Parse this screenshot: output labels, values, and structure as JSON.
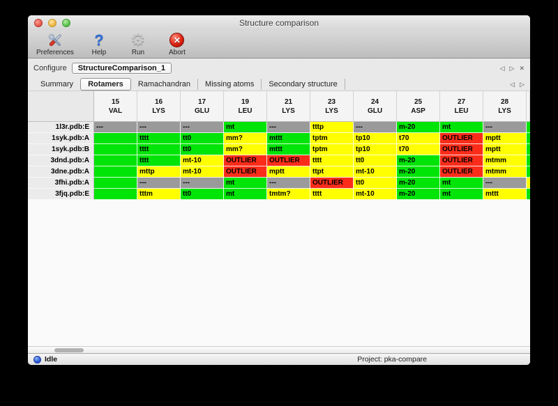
{
  "window": {
    "title": "Structure comparison"
  },
  "toolbar": {
    "preferences_label": "Preferences",
    "help_label": "Help",
    "run_label": "Run",
    "abort_label": "Abort"
  },
  "configure": {
    "label": "Configure",
    "value": "StructureComparison_1",
    "nav_prev": "◁",
    "nav_next": "▷",
    "nav_close": "✕"
  },
  "tabs": {
    "items": [
      {
        "label": "Summary",
        "active": false
      },
      {
        "label": "Rotamers",
        "active": true
      },
      {
        "label": "Ramachandran",
        "active": false
      },
      {
        "label": "Missing atoms",
        "active": false
      },
      {
        "label": "Secondary structure",
        "active": false
      }
    ],
    "nav_prev": "◁",
    "nav_next": "▷"
  },
  "table": {
    "columns": [
      {
        "num": "15",
        "res": "VAL"
      },
      {
        "num": "16",
        "res": "LYS"
      },
      {
        "num": "17",
        "res": "GLU"
      },
      {
        "num": "19",
        "res": "LEU"
      },
      {
        "num": "21",
        "res": "LYS"
      },
      {
        "num": "23",
        "res": "LYS"
      },
      {
        "num": "24",
        "res": "GLU"
      },
      {
        "num": "25",
        "res": "ASP"
      },
      {
        "num": "27",
        "res": "LEU"
      },
      {
        "num": "28",
        "res": "LYS"
      }
    ],
    "status_colors": {
      "good": "#00e407",
      "warn": "#ffff00",
      "bad": "#fb2d1a",
      "na": "#9a9a9a"
    },
    "rows": [
      {
        "label": "1l3r.pdb:E",
        "edge": "good",
        "cells": [
          {
            "text": "---",
            "status": "na"
          },
          {
            "text": "---",
            "status": "na"
          },
          {
            "text": "---",
            "status": "na"
          },
          {
            "text": "mt",
            "status": "good"
          },
          {
            "text": "---",
            "status": "na"
          },
          {
            "text": "tttp",
            "status": "warn"
          },
          {
            "text": "---",
            "status": "na"
          },
          {
            "text": "m-20",
            "status": "good"
          },
          {
            "text": "mt",
            "status": "good"
          },
          {
            "text": "---",
            "status": "na"
          }
        ]
      },
      {
        "label": "1syk.pdb:A",
        "edge": "good",
        "cells": [
          {
            "text": "",
            "status": "good"
          },
          {
            "text": "tttt",
            "status": "good"
          },
          {
            "text": "tt0",
            "status": "good"
          },
          {
            "text": "mm?",
            "status": "warn"
          },
          {
            "text": "mttt",
            "status": "good"
          },
          {
            "text": "tptm",
            "status": "warn"
          },
          {
            "text": "tp10",
            "status": "warn"
          },
          {
            "text": "t70",
            "status": "warn"
          },
          {
            "text": "OUTLIER",
            "status": "bad"
          },
          {
            "text": "mptt",
            "status": "warn"
          }
        ]
      },
      {
        "label": "1syk.pdb:B",
        "edge": "good",
        "cells": [
          {
            "text": "",
            "status": "good"
          },
          {
            "text": "tttt",
            "status": "good"
          },
          {
            "text": "tt0",
            "status": "good"
          },
          {
            "text": "mm?",
            "status": "warn"
          },
          {
            "text": "mttt",
            "status": "good"
          },
          {
            "text": "tptm",
            "status": "warn"
          },
          {
            "text": "tp10",
            "status": "warn"
          },
          {
            "text": "t70",
            "status": "warn"
          },
          {
            "text": "OUTLIER",
            "status": "bad"
          },
          {
            "text": "mptt",
            "status": "warn"
          }
        ]
      },
      {
        "label": "3dnd.pdb:A",
        "edge": "good",
        "cells": [
          {
            "text": "",
            "status": "good"
          },
          {
            "text": "tttt",
            "status": "good"
          },
          {
            "text": "mt-10",
            "status": "warn"
          },
          {
            "text": "OUTLIER",
            "status": "bad"
          },
          {
            "text": "OUTLIER",
            "status": "bad"
          },
          {
            "text": "tttt",
            "status": "warn"
          },
          {
            "text": "tt0",
            "status": "warn"
          },
          {
            "text": "m-20",
            "status": "good"
          },
          {
            "text": "OUTLIER",
            "status": "bad"
          },
          {
            "text": "mtmm",
            "status": "warn"
          }
        ]
      },
      {
        "label": "3dne.pdb:A",
        "edge": "good",
        "cells": [
          {
            "text": "",
            "status": "good"
          },
          {
            "text": "mttp",
            "status": "warn"
          },
          {
            "text": "mt-10",
            "status": "warn"
          },
          {
            "text": "OUTLIER",
            "status": "bad"
          },
          {
            "text": "mptt",
            "status": "warn"
          },
          {
            "text": "ttpt",
            "status": "warn"
          },
          {
            "text": "mt-10",
            "status": "warn"
          },
          {
            "text": "m-20",
            "status": "good"
          },
          {
            "text": "OUTLIER",
            "status": "bad"
          },
          {
            "text": "mtmm",
            "status": "warn"
          }
        ]
      },
      {
        "label": "3fhi.pdb:A",
        "edge": "warn",
        "cells": [
          {
            "text": "",
            "status": "good"
          },
          {
            "text": "---",
            "status": "na"
          },
          {
            "text": "---",
            "status": "na"
          },
          {
            "text": "mt",
            "status": "good"
          },
          {
            "text": "---",
            "status": "na"
          },
          {
            "text": "OUTLIER",
            "status": "bad"
          },
          {
            "text": "tt0",
            "status": "warn"
          },
          {
            "text": "m-20",
            "status": "good"
          },
          {
            "text": "mt",
            "status": "good"
          },
          {
            "text": "---",
            "status": "na"
          }
        ]
      },
      {
        "label": "3fjq.pdb:E",
        "edge": "good",
        "cells": [
          {
            "text": "",
            "status": "good"
          },
          {
            "text": "tttm",
            "status": "warn"
          },
          {
            "text": "tt0",
            "status": "good"
          },
          {
            "text": "mt",
            "status": "good"
          },
          {
            "text": "tmtm?",
            "status": "warn"
          },
          {
            "text": "tttt",
            "status": "warn"
          },
          {
            "text": "mt-10",
            "status": "warn"
          },
          {
            "text": "m-20",
            "status": "good"
          },
          {
            "text": "mt",
            "status": "good"
          },
          {
            "text": "mttt",
            "status": "warn"
          }
        ]
      }
    ]
  },
  "statusbar": {
    "status": "Idle",
    "project": "Project: pka-compare"
  }
}
